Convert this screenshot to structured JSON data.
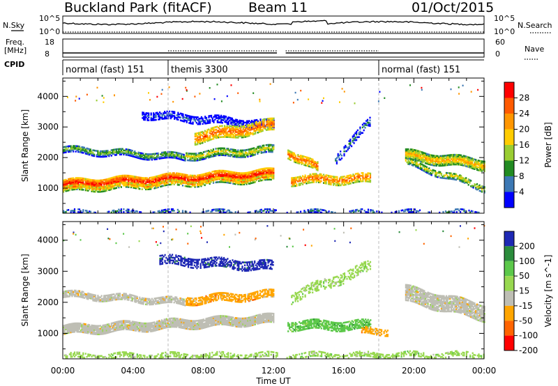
{
  "header": {
    "station": "Buckland Park (fitACF)",
    "beam": "Beam 11",
    "date": "01/Oct/2015"
  },
  "noise_panel": {
    "left_label": "N.Sky",
    "right_label": "N.Search",
    "left_ticks": [
      "10^5",
      "10^0"
    ],
    "right_ticks": [
      "10^5",
      "10^0"
    ]
  },
  "freq_panel": {
    "left_label_1": "Freq.",
    "left_label_2": "[MHz]",
    "left_ticks": [
      "18",
      "8"
    ],
    "right_label": "Nave",
    "right_ticks": [
      "60",
      "0"
    ]
  },
  "cpid": {
    "label": "CPID",
    "modes": [
      {
        "name": "normal (fast) 151",
        "start_hour": 0,
        "end_hour": 6
      },
      {
        "name": "themis 3300",
        "start_hour": 6,
        "end_hour": 18
      },
      {
        "name": "normal (fast) 151",
        "start_hour": 18,
        "end_hour": 24
      }
    ]
  },
  "x_axis": {
    "label": "Time UT",
    "range_hours": [
      0,
      24
    ],
    "tick_hours": [
      0,
      4,
      8,
      12,
      16,
      20,
      24
    ],
    "tick_labels": [
      "00:00",
      "04:00",
      "08:00",
      "12:00",
      "16:00",
      "20:00",
      "00:00"
    ]
  },
  "chart_data": [
    {
      "type": "heatmap",
      "title": "",
      "xlabel": "Time UT",
      "ylabel": "Slant Range [km]",
      "xlim": [
        0,
        24
      ],
      "ylim": [
        180,
        4600
      ],
      "yticks": [
        1000,
        2000,
        3000,
        4000
      ],
      "colorbar": {
        "label": "Power [dB]",
        "tick_labels": [
          "28",
          "24",
          "20",
          "16",
          "12",
          "8",
          "4"
        ],
        "colors": [
          "#ff0000",
          "#ff5a00",
          "#ff9600",
          "#ffcc00",
          "#9acd32",
          "#228b22",
          "#3c78b4",
          "#0000ff"
        ]
      },
      "regions": [
        {
          "t0": 0.0,
          "t1": 12.0,
          "r_center_start": 1150,
          "r_center_end": 1500,
          "thickness": 280,
          "density": 0.95,
          "color_index": 0
        },
        {
          "t0": 0.0,
          "t1": 12.0,
          "r_center_start": 1000,
          "r_center_end": 1350,
          "thickness": 180,
          "density": 0.7,
          "color_index": 2
        },
        {
          "t0": 0.0,
          "t1": 7.0,
          "r_center_start": 2300,
          "r_center_end": 2050,
          "thickness": 220,
          "density": 0.85,
          "color_index": 4
        },
        {
          "t0": 7.0,
          "t1": 12.0,
          "r_center_start": 2100,
          "r_center_end": 2300,
          "thickness": 260,
          "density": 0.8,
          "color_index": 3
        },
        {
          "t0": 4.5,
          "t1": 12.0,
          "r_center_start": 3450,
          "r_center_end": 3100,
          "thickness": 250,
          "density": 0.6,
          "color_index": 6
        },
        {
          "t0": 7.5,
          "t1": 12.0,
          "r_center_start": 2700,
          "r_center_end": 3100,
          "thickness": 380,
          "density": 0.7,
          "color_index": 1
        },
        {
          "t0": 12.8,
          "t1": 14.5,
          "r_center_start": 2200,
          "r_center_end": 1700,
          "thickness": 300,
          "density": 0.8,
          "color_index": 1
        },
        {
          "t0": 13.0,
          "t1": 17.5,
          "r_center_start": 1300,
          "r_center_end": 1350,
          "thickness": 300,
          "density": 0.7,
          "color_index": 1
        },
        {
          "t0": 15.5,
          "t1": 17.5,
          "r_center_start": 2000,
          "r_center_end": 3200,
          "thickness": 300,
          "density": 0.45,
          "color_index": 5
        },
        {
          "t0": 19.5,
          "t1": 24.0,
          "r_center_start": 2100,
          "r_center_end": 1800,
          "thickness": 320,
          "density": 0.9,
          "color_index": 2
        },
        {
          "t0": 19.5,
          "t1": 24.0,
          "r_center_start": 1900,
          "r_center_end": 1050,
          "thickness": 220,
          "density": 0.6,
          "color_index": 3
        },
        {
          "t0": 0.0,
          "t1": 24.0,
          "r_center_start": 250,
          "r_center_end": 250,
          "thickness": 120,
          "density": 0.5,
          "color_index": 5
        }
      ]
    },
    {
      "type": "heatmap",
      "title": "",
      "xlabel": "Time UT",
      "ylabel": "Slant Range [km]",
      "xlim": [
        0,
        24
      ],
      "ylim": [
        180,
        4600
      ],
      "yticks": [
        1000,
        2000,
        3000,
        4000
      ],
      "colorbar": {
        "label": "Velocity [m s^-1]",
        "tick_labels": [
          "200",
          "100",
          "50",
          "15",
          "-15",
          "-50",
          "-100",
          "-200"
        ],
        "colors": [
          "#1e28b4",
          "#2b8c3c",
          "#5cc84a",
          "#98d850",
          "#bebeb4",
          "#ffa500",
          "#ff6400",
          "#ff0000"
        ]
      },
      "regions": [
        {
          "t0": 0.0,
          "t1": 12.0,
          "r_center_start": 1150,
          "r_center_end": 1500,
          "thickness": 300,
          "density": 0.95,
          "color_index": 4
        },
        {
          "t0": 0.0,
          "t1": 7.0,
          "r_center_start": 2300,
          "r_center_end": 2050,
          "thickness": 220,
          "density": 0.8,
          "color_index": 4
        },
        {
          "t0": 7.0,
          "t1": 12.0,
          "r_center_start": 2100,
          "r_center_end": 2300,
          "thickness": 260,
          "density": 0.7,
          "color_index": 5
        },
        {
          "t0": 5.5,
          "t1": 12.0,
          "r_center_start": 3400,
          "r_center_end": 3200,
          "thickness": 300,
          "density": 0.6,
          "color_index": 0
        },
        {
          "t0": 12.8,
          "t1": 17.5,
          "r_center_start": 1300,
          "r_center_end": 1300,
          "thickness": 300,
          "density": 0.7,
          "color_index": 2
        },
        {
          "t0": 13.0,
          "t1": 17.5,
          "r_center_start": 2200,
          "r_center_end": 3200,
          "thickness": 350,
          "density": 0.4,
          "color_index": 3
        },
        {
          "t0": 17.0,
          "t1": 18.5,
          "r_center_start": 1100,
          "r_center_end": 1100,
          "thickness": 200,
          "density": 0.5,
          "color_index": 5
        },
        {
          "t0": 19.5,
          "t1": 24.0,
          "r_center_start": 2300,
          "r_center_end": 1700,
          "thickness": 500,
          "density": 0.85,
          "color_index": 4
        },
        {
          "t0": 0.0,
          "t1": 24.0,
          "r_center_start": 300,
          "r_center_end": 350,
          "thickness": 160,
          "density": 0.5,
          "color_index": 3
        }
      ]
    }
  ]
}
